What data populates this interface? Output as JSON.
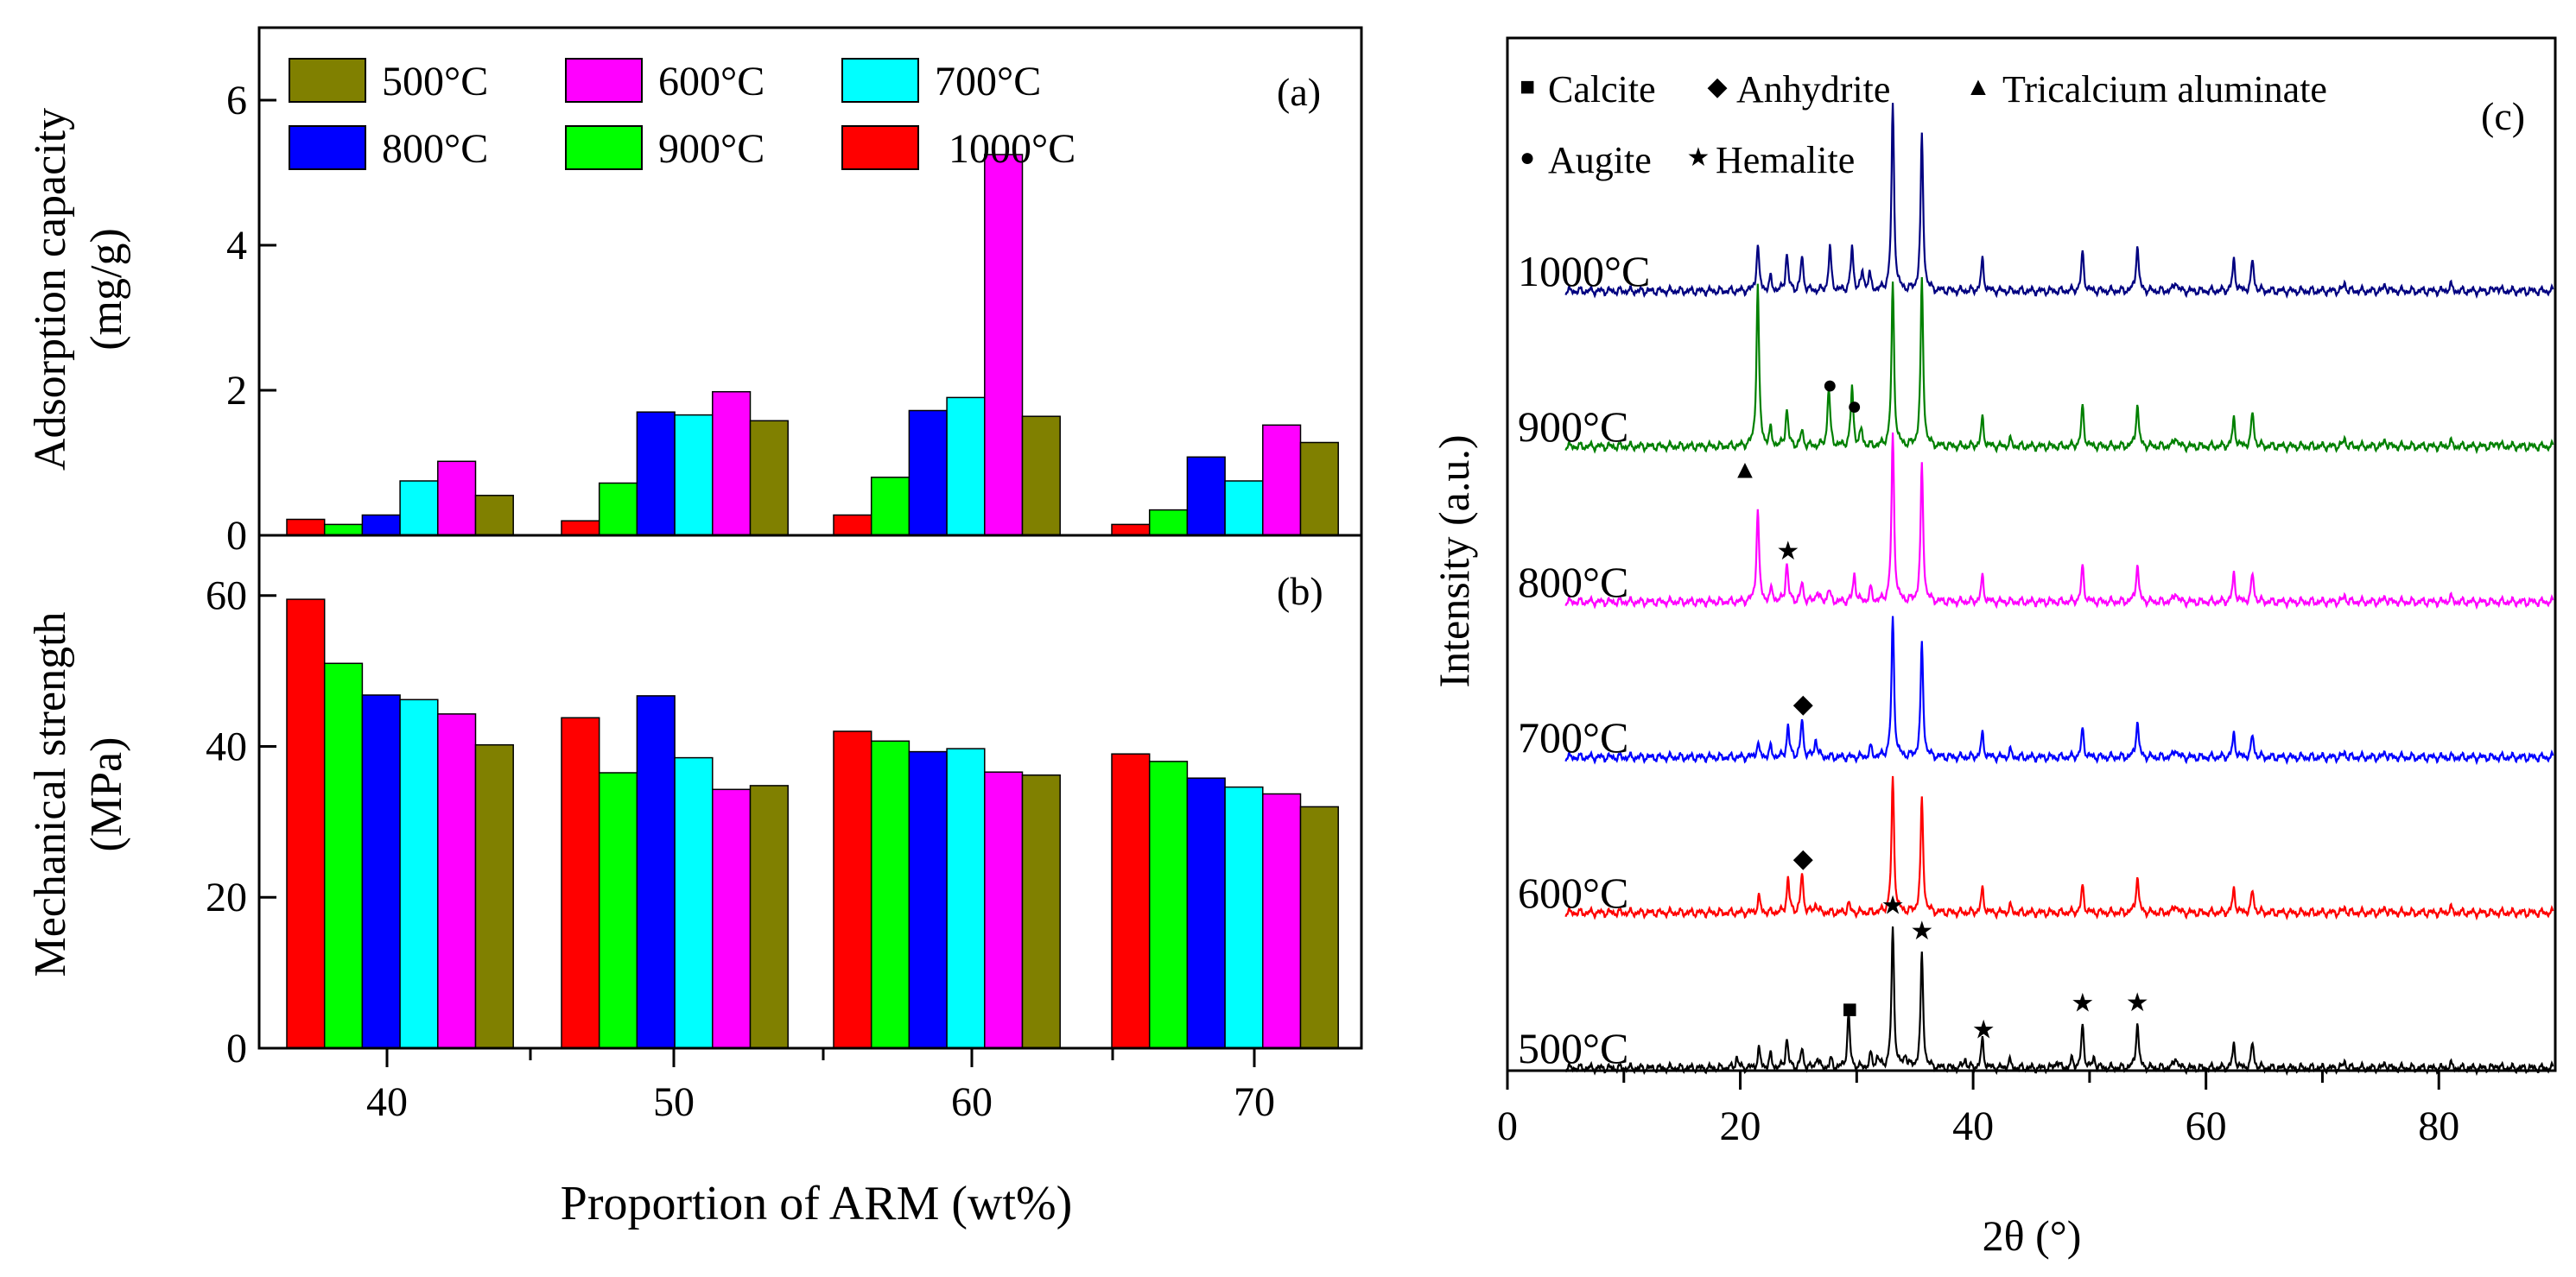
{
  "chart_data": [
    {
      "id": "a",
      "type": "bar",
      "panel_label": "(a)",
      "ylabel_line1": "Adsorption capacity",
      "ylabel_line2": "(mg/g)",
      "ylim": [
        0,
        7
      ],
      "yticks": [
        0,
        2,
        4,
        6
      ],
      "categories": [
        "40",
        "50",
        "60",
        "70"
      ],
      "series": [
        {
          "name": "1000°C",
          "color": "#ff0000",
          "values": [
            0.22,
            0.2,
            0.28,
            0.15
          ]
        },
        {
          "name": "900°C",
          "color": "#00ff00",
          "values": [
            0.15,
            0.72,
            0.8,
            0.35
          ]
        },
        {
          "name": "800°C",
          "color": "#0000ff",
          "values": [
            0.28,
            1.7,
            1.72,
            1.08
          ]
        },
        {
          "name": "700°C",
          "color": "#00ffff",
          "values": [
            0.75,
            1.66,
            1.9,
            0.75
          ]
        },
        {
          "name": "600°C",
          "color": "#ff00ff",
          "values": [
            1.02,
            1.98,
            5.25,
            1.52
          ]
        },
        {
          "name": "500°C",
          "color": "#808000",
          "values": [
            0.55,
            1.58,
            1.64,
            1.28
          ]
        }
      ],
      "legend_order": [
        "500°C",
        "600°C",
        "700°C",
        "800°C",
        "900°C",
        "1000°C"
      ]
    },
    {
      "id": "b",
      "type": "bar",
      "panel_label": "(b)",
      "ylabel_line1": "Mechanical strength",
      "ylabel_line2": "(MPa)",
      "xlabel": "Proportion of ARM (wt%)",
      "ylim": [
        0,
        65
      ],
      "yticks": [
        0,
        20,
        40,
        60
      ],
      "categories": [
        "40",
        "50",
        "60",
        "70"
      ],
      "series": [
        {
          "name": "1000°C",
          "color": "#ff0000",
          "values": [
            59.5,
            43.8,
            42.0,
            39.0
          ]
        },
        {
          "name": "900°C",
          "color": "#00ff00",
          "values": [
            51.0,
            36.5,
            40.7,
            38.0
          ]
        },
        {
          "name": "800°C",
          "color": "#0000ff",
          "values": [
            46.8,
            46.7,
            39.3,
            35.8
          ]
        },
        {
          "name": "700°C",
          "color": "#00ffff",
          "values": [
            46.2,
            38.5,
            39.7,
            34.6
          ]
        },
        {
          "name": "600°C",
          "color": "#ff00ff",
          "values": [
            44.3,
            34.3,
            36.6,
            33.7
          ]
        },
        {
          "name": "500°C",
          "color": "#808000",
          "values": [
            40.2,
            34.8,
            36.2,
            32.0
          ]
        }
      ]
    },
    {
      "id": "c",
      "type": "line",
      "panel_label": "(c)",
      "xlabel": "2θ (°)",
      "ylabel": "Intensity (a.u.)",
      "xlim": [
        0,
        90
      ],
      "xticks": [
        0,
        20,
        40,
        60,
        80
      ],
      "phase_legend": [
        {
          "symbol": "■",
          "name": "Calcite"
        },
        {
          "symbol": "◆",
          "name": "Anhydrite"
        },
        {
          "symbol": "▲",
          "name": "Tricalcium aluminate"
        },
        {
          "symbol": "●",
          "name": "Augite"
        },
        {
          "symbol": "★",
          "name": "Hemalite"
        }
      ],
      "series": [
        {
          "name": "500°C",
          "color": "#000000",
          "offset": 0.0,
          "x_start": 5,
          "peaks": [
            [
              19.7,
              0.07
            ],
            [
              21.6,
              0.12
            ],
            [
              22.6,
              0.08
            ],
            [
              24.0,
              0.19
            ],
            [
              25.3,
              0.12
            ],
            [
              26.6,
              0.07
            ],
            [
              27.8,
              0.05
            ],
            [
              29.3,
              0.35
            ],
            [
              31.2,
              0.08
            ],
            [
              31.8,
              0.07
            ],
            [
              33.1,
              0.9
            ],
            [
              34.2,
              0.08
            ],
            [
              35.6,
              0.73
            ],
            [
              39.3,
              0.06
            ],
            [
              40.8,
              0.18
            ],
            [
              43.1,
              0.05
            ],
            [
              47.2,
              0.05
            ],
            [
              48.5,
              0.05
            ],
            [
              49.4,
              0.27
            ],
            [
              50.4,
              0.06
            ],
            [
              54.1,
              0.3
            ],
            [
              57.4,
              0.08
            ],
            [
              62.4,
              0.15
            ],
            [
              64.0,
              0.16
            ],
            [
              71.9,
              0.04
            ],
            [
              75.4,
              0.03
            ],
            [
              81,
              0.025
            ],
            [
              85,
              0.02
            ]
          ]
        },
        {
          "name": "600°C",
          "color": "#ff0000",
          "offset": 1.0,
          "x_start": 5,
          "peaks": [
            [
              21.6,
              0.1
            ],
            [
              24.1,
              0.22
            ],
            [
              25.3,
              0.25
            ],
            [
              26.5,
              0.06
            ],
            [
              29.3,
              0.06
            ],
            [
              33.1,
              0.87
            ],
            [
              35.6,
              0.73
            ],
            [
              40.8,
              0.15
            ],
            [
              43.2,
              0.04
            ],
            [
              49.4,
              0.17
            ],
            [
              54.1,
              0.24
            ],
            [
              57.4,
              0.06
            ],
            [
              62.4,
              0.15
            ],
            [
              64.0,
              0.14
            ],
            [
              71.9,
              0.03
            ],
            [
              75.4,
              0.03
            ],
            [
              81,
              0.03
            ]
          ]
        },
        {
          "name": "700°C",
          "color": "#0000ff",
          "offset": 2.0,
          "x_start": 5,
          "peaks": [
            [
              21.5,
              0.09
            ],
            [
              22.6,
              0.06
            ],
            [
              24.1,
              0.2
            ],
            [
              25.3,
              0.24
            ],
            [
              26.5,
              0.12
            ],
            [
              31.2,
              0.06
            ],
            [
              33.1,
              0.9
            ],
            [
              35.6,
              0.73
            ],
            [
              40.8,
              0.15
            ],
            [
              43.2,
              0.04
            ],
            [
              49.4,
              0.18
            ],
            [
              54.1,
              0.24
            ],
            [
              57.4,
              0.06
            ],
            [
              62.4,
              0.15
            ],
            [
              64.0,
              0.14
            ],
            [
              71.9,
              0.03
            ],
            [
              75.4,
              0.03
            ]
          ]
        },
        {
          "name": "800°C",
          "color": "#ff00ff",
          "offset": 3.0,
          "x_start": 5,
          "peaks": [
            [
              21.5,
              0.6
            ],
            [
              22.7,
              0.08
            ],
            [
              24.0,
              0.25
            ],
            [
              25.3,
              0.12
            ],
            [
              26.6,
              0.07
            ],
            [
              27.6,
              0.08
            ],
            [
              29.8,
              0.18
            ],
            [
              31.2,
              0.08
            ],
            [
              33.1,
              1.08
            ],
            [
              35.6,
              0.88
            ],
            [
              40.8,
              0.16
            ],
            [
              49.4,
              0.23
            ],
            [
              54.1,
              0.25
            ],
            [
              57.4,
              0.07
            ],
            [
              62.4,
              0.18
            ],
            [
              64.0,
              0.18
            ],
            [
              71.9,
              0.04
            ],
            [
              75.4,
              0.03
            ],
            [
              81,
              0.03
            ]
          ]
        },
        {
          "name": "900°C",
          "color": "#008000",
          "offset": 4.0,
          "x_start": 5,
          "peaks": [
            [
              21.5,
              1.05
            ],
            [
              22.6,
              0.1
            ],
            [
              24.0,
              0.24
            ],
            [
              25.3,
              0.1
            ],
            [
              27.6,
              0.38
            ],
            [
              29.6,
              0.38
            ],
            [
              30.4,
              0.1
            ],
            [
              33.1,
              1.05
            ],
            [
              35.6,
              1.07
            ],
            [
              40.8,
              0.18
            ],
            [
              43.2,
              0.04
            ],
            [
              49.4,
              0.26
            ],
            [
              54.1,
              0.28
            ],
            [
              57.4,
              0.07
            ],
            [
              62.4,
              0.18
            ],
            [
              64.0,
              0.22
            ],
            [
              71.9,
              0.05
            ],
            [
              75.4,
              0.04
            ],
            [
              81,
              0.03
            ],
            [
              85,
              0.03
            ]
          ]
        },
        {
          "name": "1000°C",
          "color": "#000080",
          "offset": 5.0,
          "x_start": 5,
          "peaks": [
            [
              21.5,
              0.3
            ],
            [
              22.6,
              0.08
            ],
            [
              24.0,
              0.24
            ],
            [
              25.3,
              0.22
            ],
            [
              27.7,
              0.28
            ],
            [
              29.6,
              0.28
            ],
            [
              30.5,
              0.12
            ],
            [
              31.1,
              0.1
            ],
            [
              33.1,
              1.2
            ],
            [
              35.6,
              1.0
            ],
            [
              40.8,
              0.2
            ],
            [
              49.4,
              0.25
            ],
            [
              54.1,
              0.3
            ],
            [
              57.4,
              0.07
            ],
            [
              62.4,
              0.2
            ],
            [
              64.0,
              0.2
            ],
            [
              71.9,
              0.05
            ],
            [
              75.4,
              0.04
            ],
            [
              81,
              0.04
            ],
            [
              85,
              0.03
            ]
          ]
        }
      ],
      "annotations": [
        {
          "symbol": "■",
          "x": 29.4,
          "series": "500°C",
          "gap": 0.08
        },
        {
          "symbol": "★",
          "x": 33.1,
          "series": "500°C",
          "gap": 0.08
        },
        {
          "symbol": "★",
          "x": 35.6,
          "series": "500°C",
          "gap": 0.08
        },
        {
          "symbol": "★",
          "x": 40.9,
          "series": "500°C",
          "gap": 0.08
        },
        {
          "symbol": "★",
          "x": 49.4,
          "series": "500°C",
          "gap": 0.08
        },
        {
          "symbol": "★",
          "x": 54.1,
          "series": "500°C",
          "gap": 0.08
        },
        {
          "symbol": "◆",
          "x": 25.4,
          "series": "600°C",
          "gap": 0.12
        },
        {
          "symbol": "◆",
          "x": 25.4,
          "series": "700°C",
          "gap": 0.12
        },
        {
          "symbol": "★",
          "x": 24.1,
          "series": "800°C",
          "gap": 0.1
        },
        {
          "symbol": "▲",
          "x": 20.4,
          "series": "800°C",
          "gap": 0.82
        },
        {
          "symbol": "●",
          "x": 27.7,
          "series": "900°C",
          "gap": 0.08
        },
        {
          "symbol": "●",
          "x": 29.8,
          "series": "900°C",
          "gap": 0.08
        }
      ]
    }
  ]
}
